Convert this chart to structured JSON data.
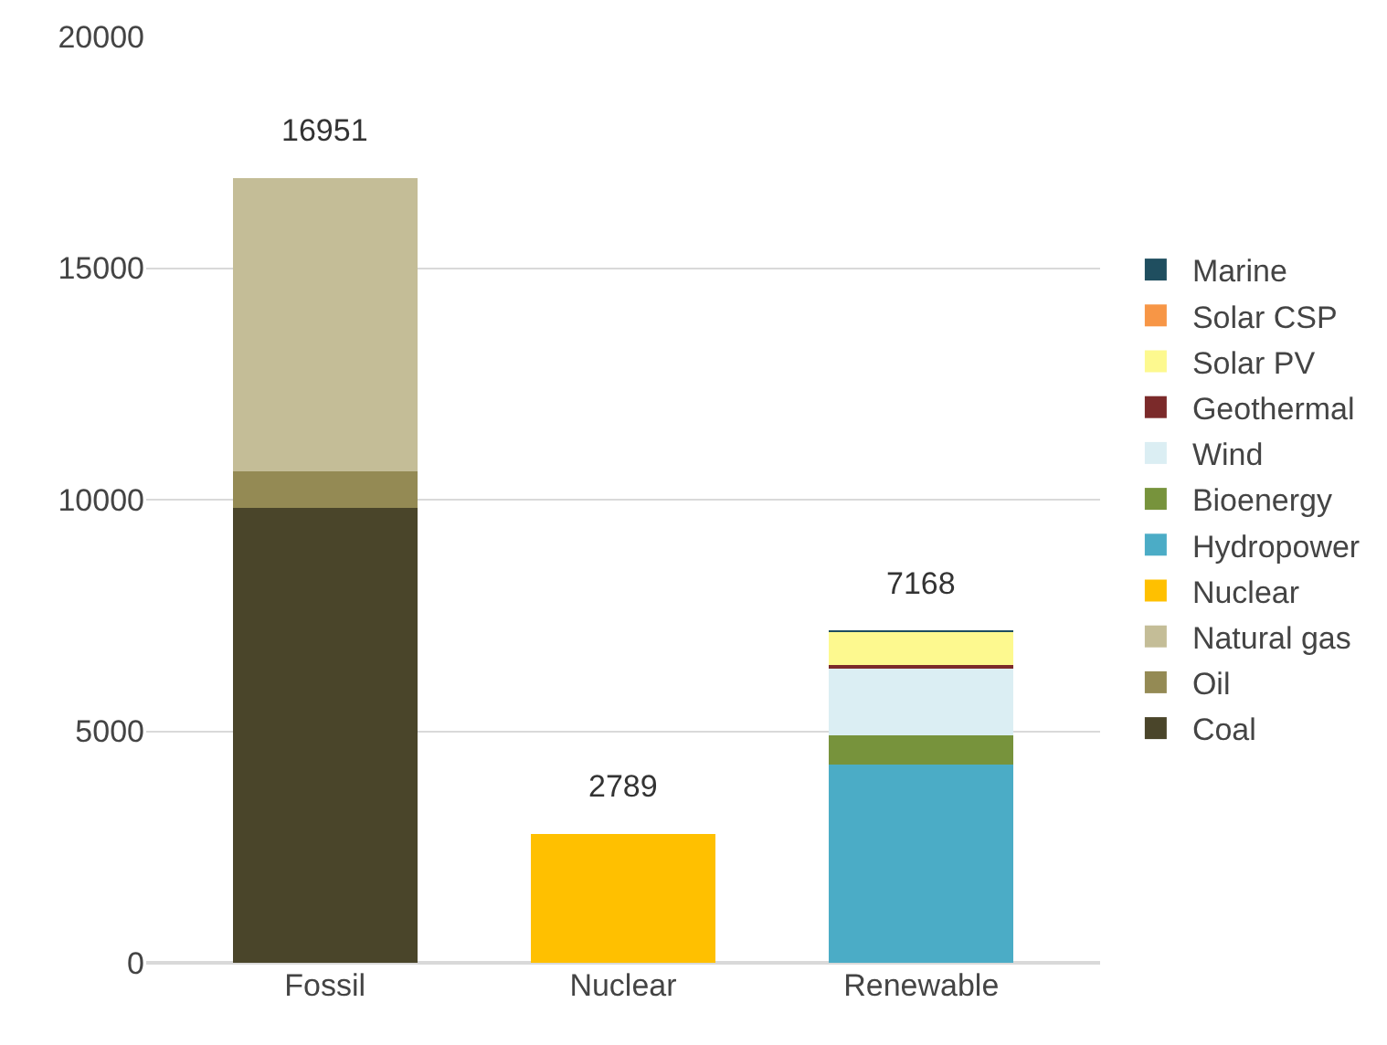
{
  "chart_data": {
    "type": "bar",
    "stacked": true,
    "categories": [
      "Fossil",
      "Nuclear",
      "Renewable"
    ],
    "series": [
      {
        "name": "Coal",
        "color": "#4a452a",
        "values": [
          9820,
          null,
          null
        ]
      },
      {
        "name": "Oil",
        "color": "#948a54",
        "values": [
          800,
          null,
          null
        ]
      },
      {
        "name": "Natural gas",
        "color": "#c4bd97",
        "values": [
          6331,
          null,
          null
        ]
      },
      {
        "name": "Nuclear",
        "color": "#ffc000",
        "values": [
          null,
          2789,
          null
        ]
      },
      {
        "name": "Hydropower",
        "color": "#4bacc6",
        "values": [
          null,
          null,
          4280
        ]
      },
      {
        "name": "Bioenergy",
        "color": "#77933c",
        "values": [
          null,
          null,
          640
        ]
      },
      {
        "name": "Wind",
        "color": "#dbeef3",
        "values": [
          null,
          null,
          1470
        ]
      },
      {
        "name": "Geothermal",
        "color": "#7b2a2a",
        "values": [
          null,
          null,
          50
        ]
      },
      {
        "name": "Solar PV",
        "color": "#fdf98f",
        "values": [
          null,
          null,
          700
        ]
      },
      {
        "name": "Solar CSP",
        "color": "#f79646",
        "values": [
          null,
          null,
          null
        ]
      },
      {
        "name": "Marine",
        "color": "#1f4e5f",
        "values": [
          null,
          null,
          28
        ]
      }
    ],
    "totals": [
      "16951",
      "2789",
      "7168"
    ],
    "ylim": [
      0,
      20000
    ],
    "yticks": [
      0,
      5000,
      10000,
      15000,
      20000
    ],
    "grid": "y",
    "legend": "right"
  }
}
